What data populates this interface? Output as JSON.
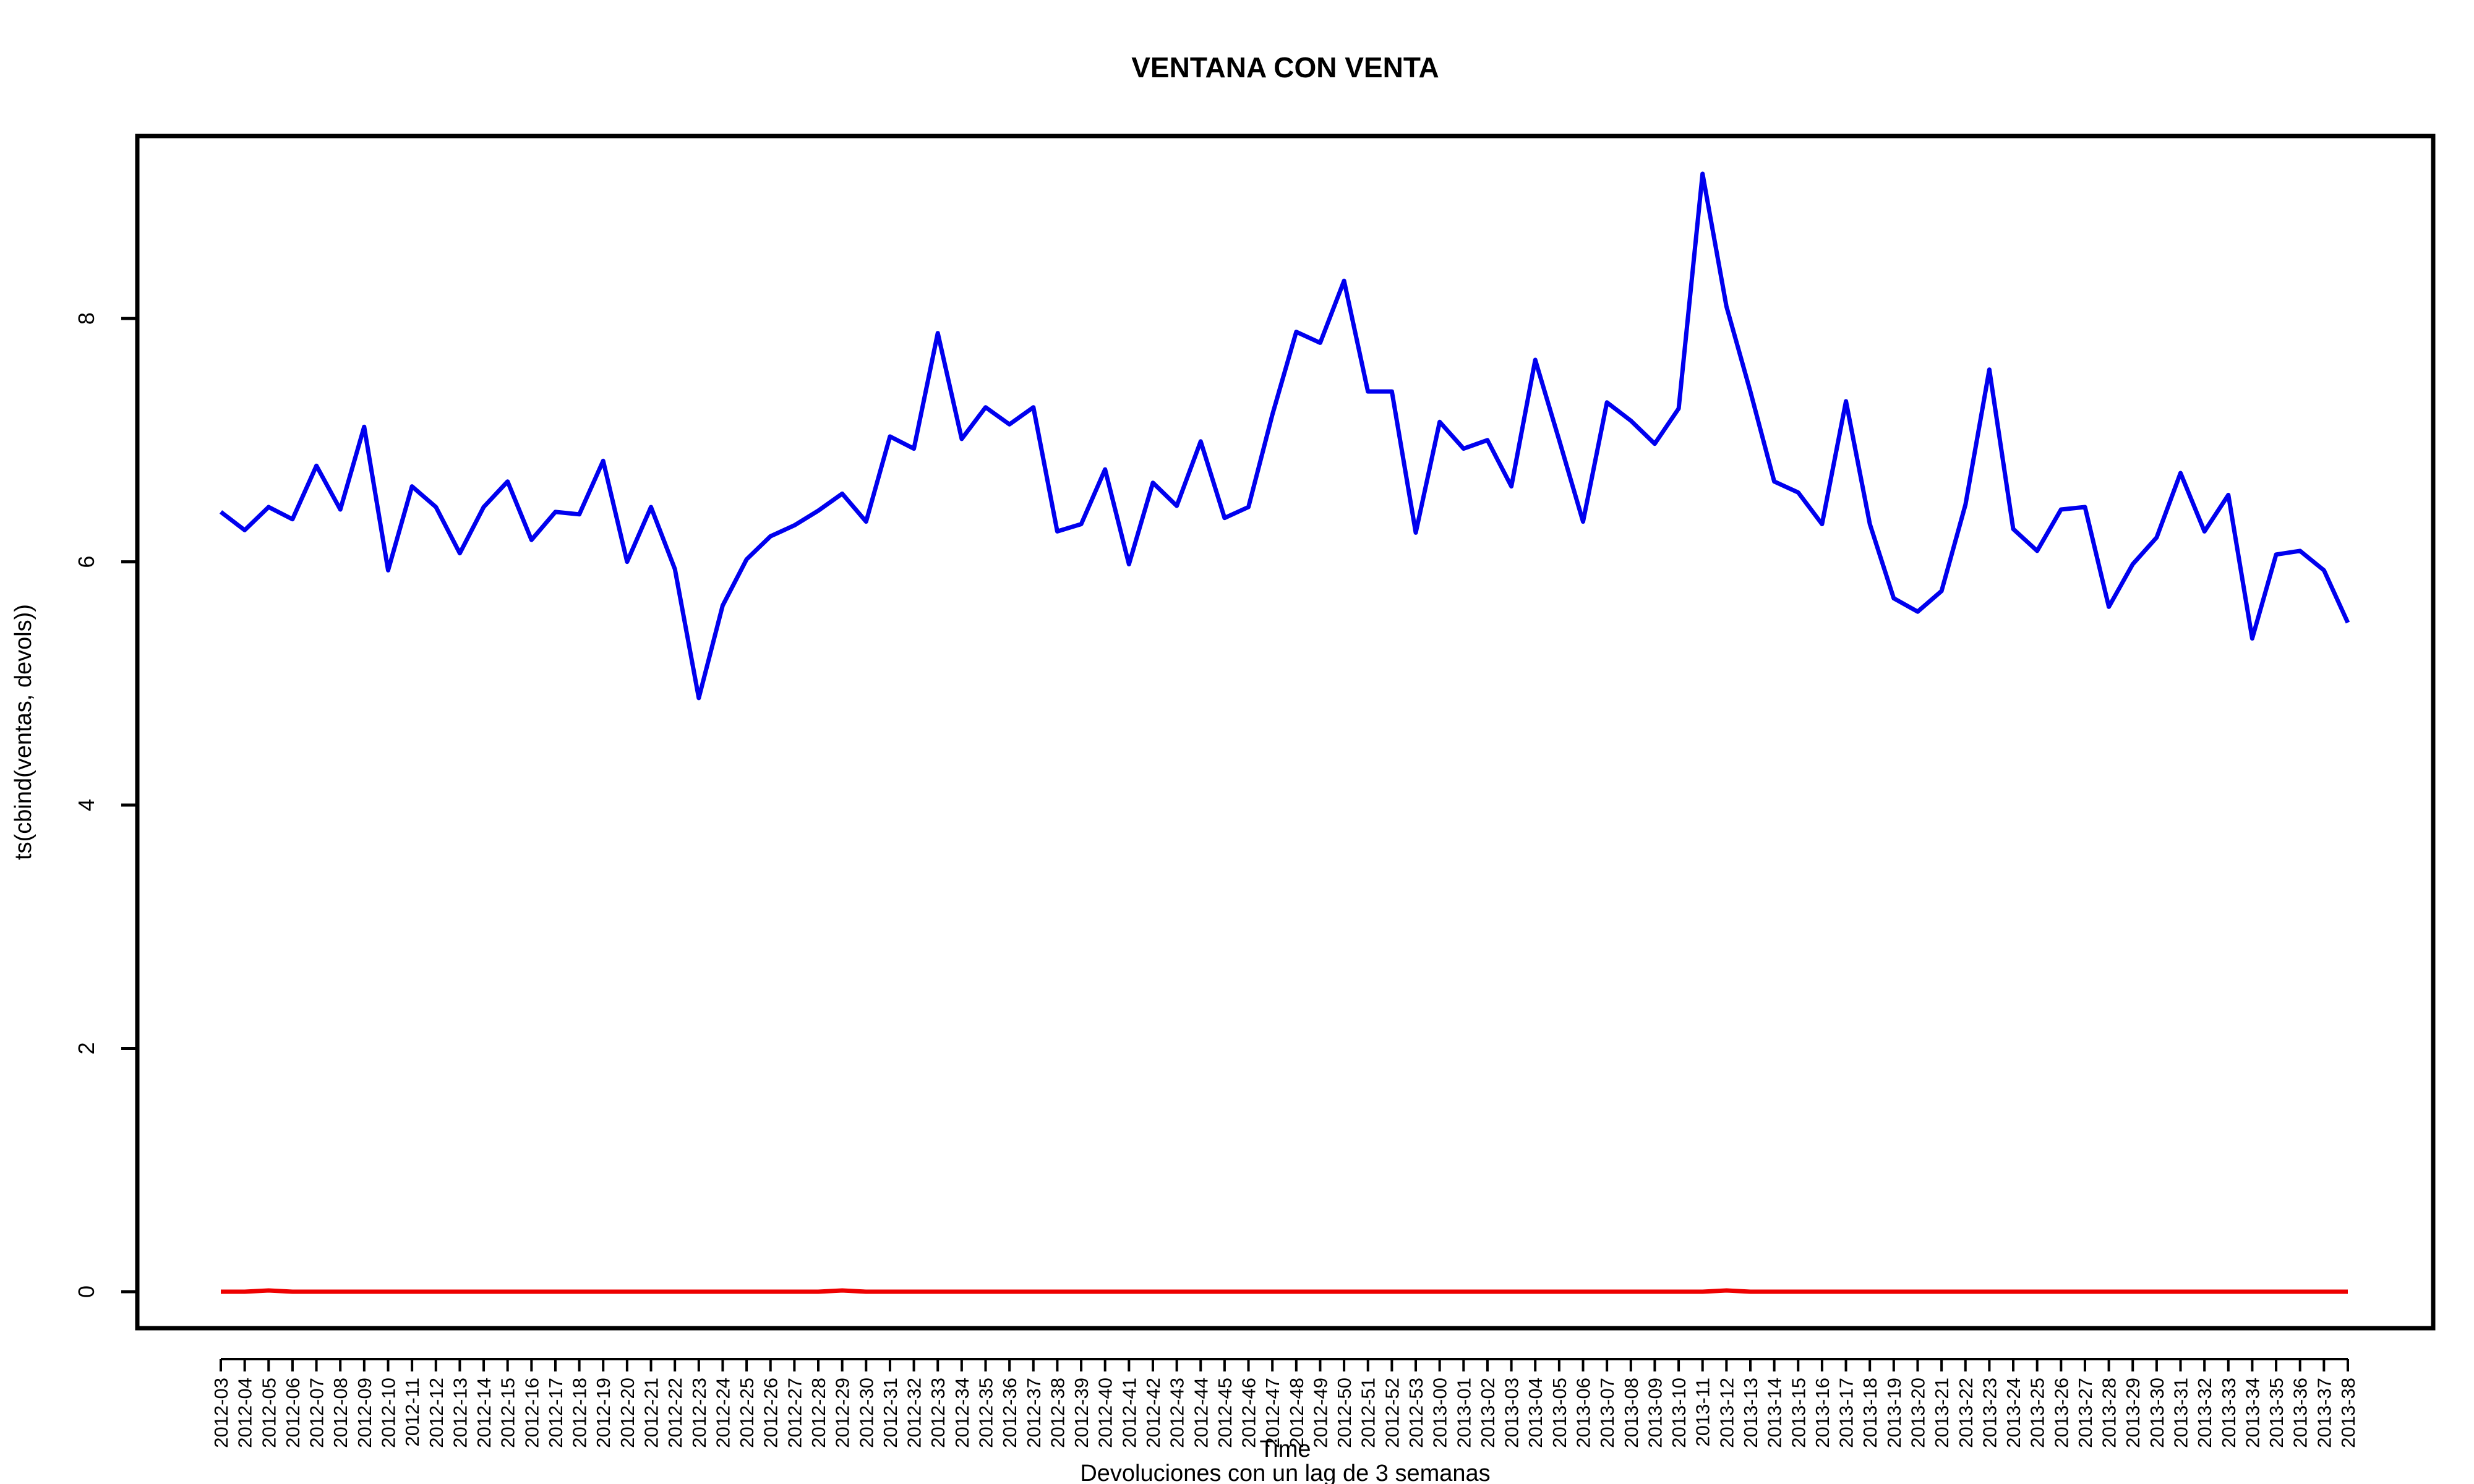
{
  "chart_data": {
    "type": "line",
    "title": "VENTANA CON VENTA",
    "xlabel": "Time",
    "ylabel": "ts(cbind(ventas, devols))",
    "subtitle": "Devoluciones con un lag de 3 semanas",
    "ylim": [
      -0.3,
      9.5
    ],
    "yticks": [
      0,
      2,
      4,
      6,
      8
    ],
    "categories": [
      "2012-03",
      "2012-04",
      "2012-05",
      "2012-06",
      "2012-07",
      "2012-08",
      "2012-09",
      "2012-10",
      "2012-11",
      "2012-12",
      "2012-13",
      "2012-14",
      "2012-15",
      "2012-16",
      "2012-17",
      "2012-18",
      "2012-19",
      "2012-20",
      "2012-21",
      "2012-22",
      "2012-23",
      "2012-24",
      "2012-25",
      "2012-26",
      "2012-27",
      "2012-28",
      "2012-29",
      "2012-30",
      "2012-31",
      "2012-32",
      "2012-33",
      "2012-34",
      "2012-35",
      "2012-36",
      "2012-37",
      "2012-38",
      "2012-39",
      "2012-40",
      "2012-41",
      "2012-42",
      "2012-43",
      "2012-44",
      "2012-45",
      "2012-46",
      "2012-47",
      "2012-48",
      "2012-49",
      "2012-50",
      "2012-51",
      "2012-52",
      "2012-53",
      "2013-00",
      "2013-01",
      "2013-02",
      "2013-03",
      "2013-04",
      "2013-05",
      "2013-06",
      "2013-07",
      "2013-08",
      "2013-09",
      "2013-10",
      "2013-11",
      "2013-12",
      "2013-13",
      "2013-14",
      "2013-15",
      "2013-16",
      "2013-17",
      "2013-18",
      "2013-19",
      "2013-20",
      "2013-21",
      "2013-22",
      "2013-23",
      "2013-24",
      "2013-25",
      "2013-26",
      "2013-27",
      "2013-28",
      "2013-29",
      "2013-30",
      "2013-31",
      "2013-32",
      "2013-33",
      "2013-34",
      "2013-35",
      "2013-36",
      "2013-37",
      "2013-38"
    ],
    "series": [
      {
        "color": "#0000ee",
        "values": [
          6.41,
          6.26,
          6.45,
          6.35,
          6.79,
          6.43,
          7.11,
          5.93,
          6.62,
          6.45,
          6.07,
          6.45,
          6.66,
          6.18,
          6.41,
          6.39,
          6.83,
          6.0,
          6.45,
          5.94,
          4.88,
          5.64,
          6.02,
          6.21,
          6.3,
          6.42,
          6.56,
          6.33,
          7.03,
          6.93,
          7.88,
          7.01,
          7.27,
          7.13,
          7.27,
          6.25,
          6.31,
          6.76,
          5.98,
          6.65,
          6.46,
          6.99,
          6.36,
          6.45,
          7.21,
          7.89,
          7.8,
          8.31,
          7.4,
          7.4,
          6.24,
          7.15,
          6.93,
          7.0,
          6.62,
          7.66,
          7.0,
          6.33,
          7.31,
          7.16,
          6.97,
          7.26,
          9.19,
          8.1,
          7.4,
          6.66,
          6.57,
          6.31,
          7.32,
          6.31,
          5.7,
          5.59,
          5.76,
          6.47,
          7.58,
          6.27,
          6.09,
          6.43,
          6.45,
          5.63,
          5.98,
          6.2,
          6.73,
          6.25,
          6.55,
          5.37,
          6.06,
          6.09,
          5.93,
          5.5
        ]
      },
      {
        "color": "#ee0000",
        "values": [
          0,
          0,
          0.01,
          0,
          0,
          0,
          0,
          0,
          0,
          0,
          0,
          0,
          0,
          0,
          0,
          0,
          0,
          0,
          0,
          0,
          0,
          0,
          0,
          0,
          0,
          0,
          0.01,
          0,
          0,
          0,
          0,
          0,
          0,
          0,
          0,
          0,
          0,
          0,
          0,
          0,
          0,
          0,
          0,
          0,
          0,
          0,
          0,
          0,
          0,
          0,
          0,
          0,
          0,
          0,
          0,
          0,
          0,
          0,
          0,
          0,
          0,
          0,
          0,
          0.01,
          0,
          0,
          0,
          0,
          0,
          0,
          0,
          0,
          0,
          0,
          0,
          0,
          0,
          0,
          0,
          0,
          0,
          0,
          0,
          0,
          0,
          0,
          0,
          0,
          0,
          0
        ]
      }
    ],
    "grid": false,
    "legend": "none"
  }
}
